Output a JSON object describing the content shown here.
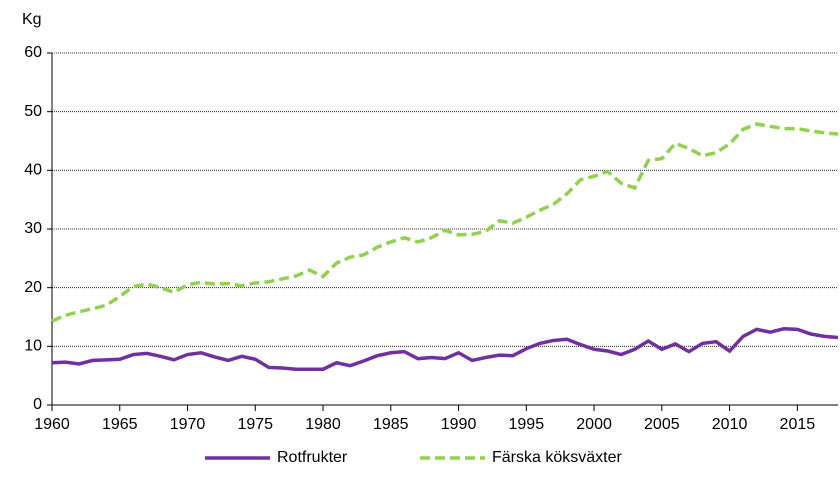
{
  "chart_data": {
    "type": "line",
    "y_label": "Kg",
    "x": [
      1960,
      1961,
      1962,
      1963,
      1964,
      1965,
      1966,
      1967,
      1968,
      1969,
      1970,
      1971,
      1972,
      1973,
      1974,
      1975,
      1976,
      1977,
      1978,
      1979,
      1980,
      1981,
      1982,
      1983,
      1984,
      1985,
      1986,
      1987,
      1988,
      1989,
      1990,
      1991,
      1992,
      1993,
      1994,
      1995,
      1996,
      1997,
      1998,
      1999,
      2000,
      2001,
      2002,
      2003,
      2004,
      2005,
      2006,
      2007,
      2008,
      2009,
      2010,
      2011,
      2012,
      2013,
      2014,
      2015,
      2016,
      2017,
      2018
    ],
    "series": [
      {
        "name": "Rotfrukter",
        "color": "#7030a0",
        "dash": "solid",
        "values": [
          7.2,
          7.3,
          7.0,
          7.6,
          7.7,
          7.8,
          8.6,
          8.8,
          8.3,
          7.7,
          8.6,
          8.9,
          8.2,
          7.6,
          8.3,
          7.8,
          6.4,
          6.3,
          6.1,
          6.1,
          6.1,
          7.2,
          6.7,
          7.5,
          8.4,
          8.9,
          9.1,
          7.9,
          8.1,
          7.9,
          8.9,
          7.6,
          8.1,
          8.5,
          8.4,
          9.6,
          10.5,
          11.0,
          11.2,
          10.3,
          9.5,
          9.2,
          8.6,
          9.5,
          10.9,
          9.5,
          10.4,
          9.1,
          10.5,
          10.8,
          9.2,
          11.7,
          12.9,
          12.4,
          13.0,
          12.9,
          12.1,
          11.7,
          11.5
        ]
      },
      {
        "name": "Färska köksväxter",
        "color": "#92d050",
        "dash": "dashed",
        "values": [
          14.3,
          15.3,
          15.9,
          16.4,
          17.0,
          18.5,
          20.2,
          20.6,
          20.0,
          19.2,
          20.5,
          20.9,
          20.6,
          20.7,
          20.3,
          20.8,
          21.0,
          21.5,
          22.0,
          23.0,
          21.9,
          24.2,
          25.2,
          25.6,
          26.9,
          27.8,
          28.5,
          27.8,
          28.5,
          29.8,
          29.0,
          29.1,
          29.6,
          31.4,
          31.0,
          32.0,
          33.2,
          34.2,
          36.0,
          38.4,
          39.0,
          39.8,
          37.8,
          37.0,
          41.7,
          42.0,
          44.6,
          43.7,
          42.5,
          43.0,
          44.5,
          47.0,
          47.9,
          47.5,
          47.1,
          47.1,
          46.7,
          46.4,
          46.2
        ]
      }
    ],
    "xlim": [
      1960,
      2018
    ],
    "xticks": [
      1960,
      1965,
      1970,
      1975,
      1980,
      1985,
      1990,
      1995,
      2000,
      2005,
      2010,
      2015
    ],
    "ylim": [
      0,
      60
    ],
    "yticks": [
      0,
      10,
      20,
      30,
      40,
      50,
      60
    ],
    "grid": true,
    "legend": "bottom"
  }
}
